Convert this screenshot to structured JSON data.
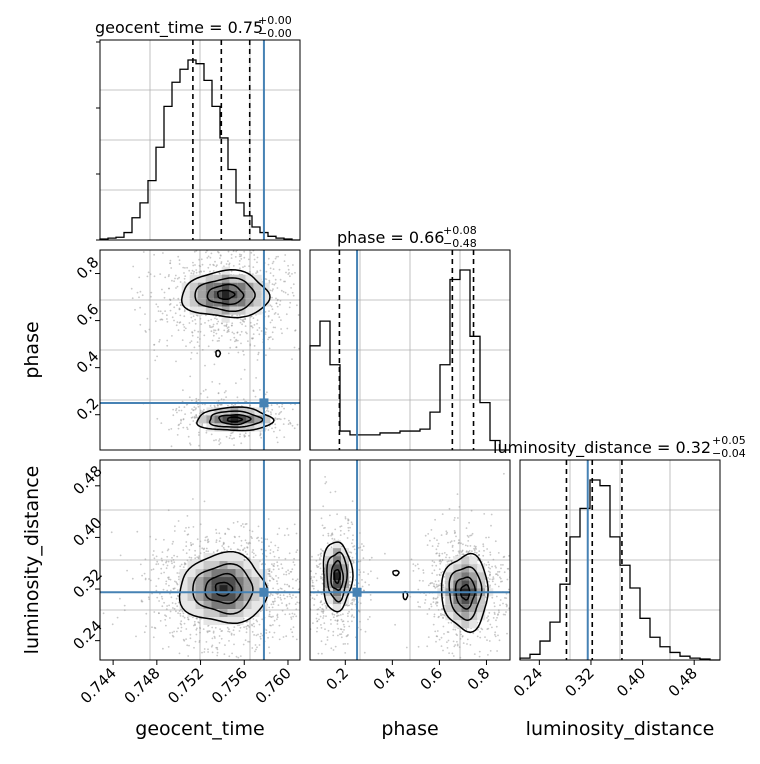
{
  "chart_data": {
    "type": "corner",
    "parameters": [
      "geocent_time",
      "phase",
      "luminosity_distance"
    ],
    "titles": [
      {
        "name": "geocent_time",
        "median": "0.75",
        "plus": "+0.00",
        "minus": "−0.00"
      },
      {
        "name": "phase",
        "median": "0.66",
        "plus": "+0.08",
        "minus": "−0.48"
      },
      {
        "name": "luminosity_distance",
        "median": "0.32",
        "plus": "+0.05",
        "minus": "−0.04"
      }
    ],
    "ranges": {
      "geocent_time": [
        0.7428,
        0.7611
      ],
      "phase": [
        0.05,
        0.9
      ],
      "luminosity_distance": [
        0.21,
        0.52
      ]
    },
    "ticks": {
      "geocent_time": [
        "0.744",
        "0.748",
        "0.752",
        "0.756",
        "0.760"
      ],
      "phase": [
        "0.2",
        "0.4",
        "0.6",
        "0.8"
      ],
      "luminosity_distance": [
        "0.24",
        "0.32",
        "0.40",
        "0.48"
      ]
    },
    "truth": {
      "geocent_time": 0.7578,
      "phase": 0.25,
      "luminosity_distance": 0.315
    },
    "quantiles": {
      "geocent_time": [
        0.7513,
        0.7539,
        0.7565
      ],
      "phase": [
        0.175,
        0.655,
        0.745
      ],
      "luminosity_distance": [
        0.282,
        0.322,
        0.368
      ]
    },
    "histograms": {
      "geocent_time": [
        0.005,
        0.01,
        0.015,
        0.04,
        0.12,
        0.2,
        0.32,
        0.5,
        0.72,
        0.85,
        0.92,
        0.97,
        0.95,
        0.86,
        0.72,
        0.55,
        0.38,
        0.2,
        0.13,
        0.07,
        0.04,
        0.02,
        0.01,
        0.005,
        0.0
      ],
      "phase": [
        0.55,
        0.68,
        0.45,
        0.1,
        0.08,
        0.08,
        0.08,
        0.09,
        0.09,
        0.1,
        0.1,
        0.11,
        0.2,
        0.45,
        0.9,
        0.95,
        0.6,
        0.25,
        0.05,
        0.0
      ],
      "luminosity_distance": [
        0.01,
        0.03,
        0.1,
        0.2,
        0.4,
        0.65,
        0.8,
        0.95,
        0.92,
        0.65,
        0.5,
        0.38,
        0.22,
        0.12,
        0.07,
        0.04,
        0.02,
        0.01,
        0.005,
        0.0
      ]
    },
    "xlabels": [
      "geocent_time",
      "phase",
      "luminosity_distance"
    ],
    "ylabels": [
      "phase",
      "luminosity_distance"
    ],
    "grid": true,
    "colors": {
      "truth": "#4682b4",
      "line": "#000000",
      "points": "#9a9a9a",
      "grid": "#b0b0b0"
    }
  }
}
